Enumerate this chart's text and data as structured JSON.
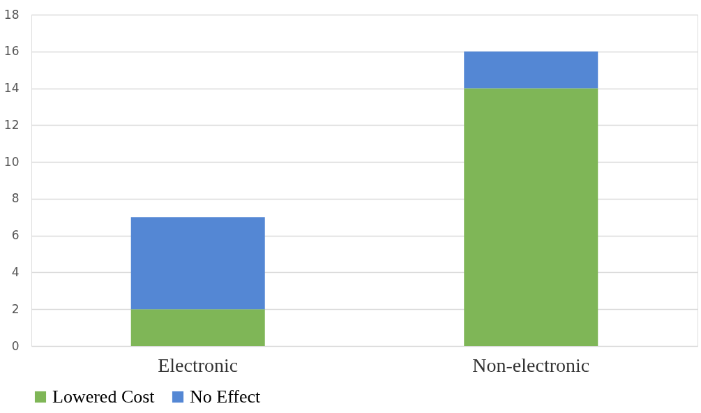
{
  "chart_data": {
    "type": "bar",
    "stacked": true,
    "categories": [
      "Electronic",
      "Non-electronic"
    ],
    "series": [
      {
        "name": "Lowered Cost",
        "color": "#7fb657",
        "values": [
          2,
          14
        ]
      },
      {
        "name": "No Effect",
        "color": "#5487d4",
        "values": [
          5,
          2
        ]
      }
    ],
    "ylim": [
      0,
      18
    ],
    "yticks": [
      0,
      2,
      4,
      6,
      8,
      10,
      12,
      14,
      16,
      18
    ],
    "grid": "y",
    "legend": "bottom"
  }
}
